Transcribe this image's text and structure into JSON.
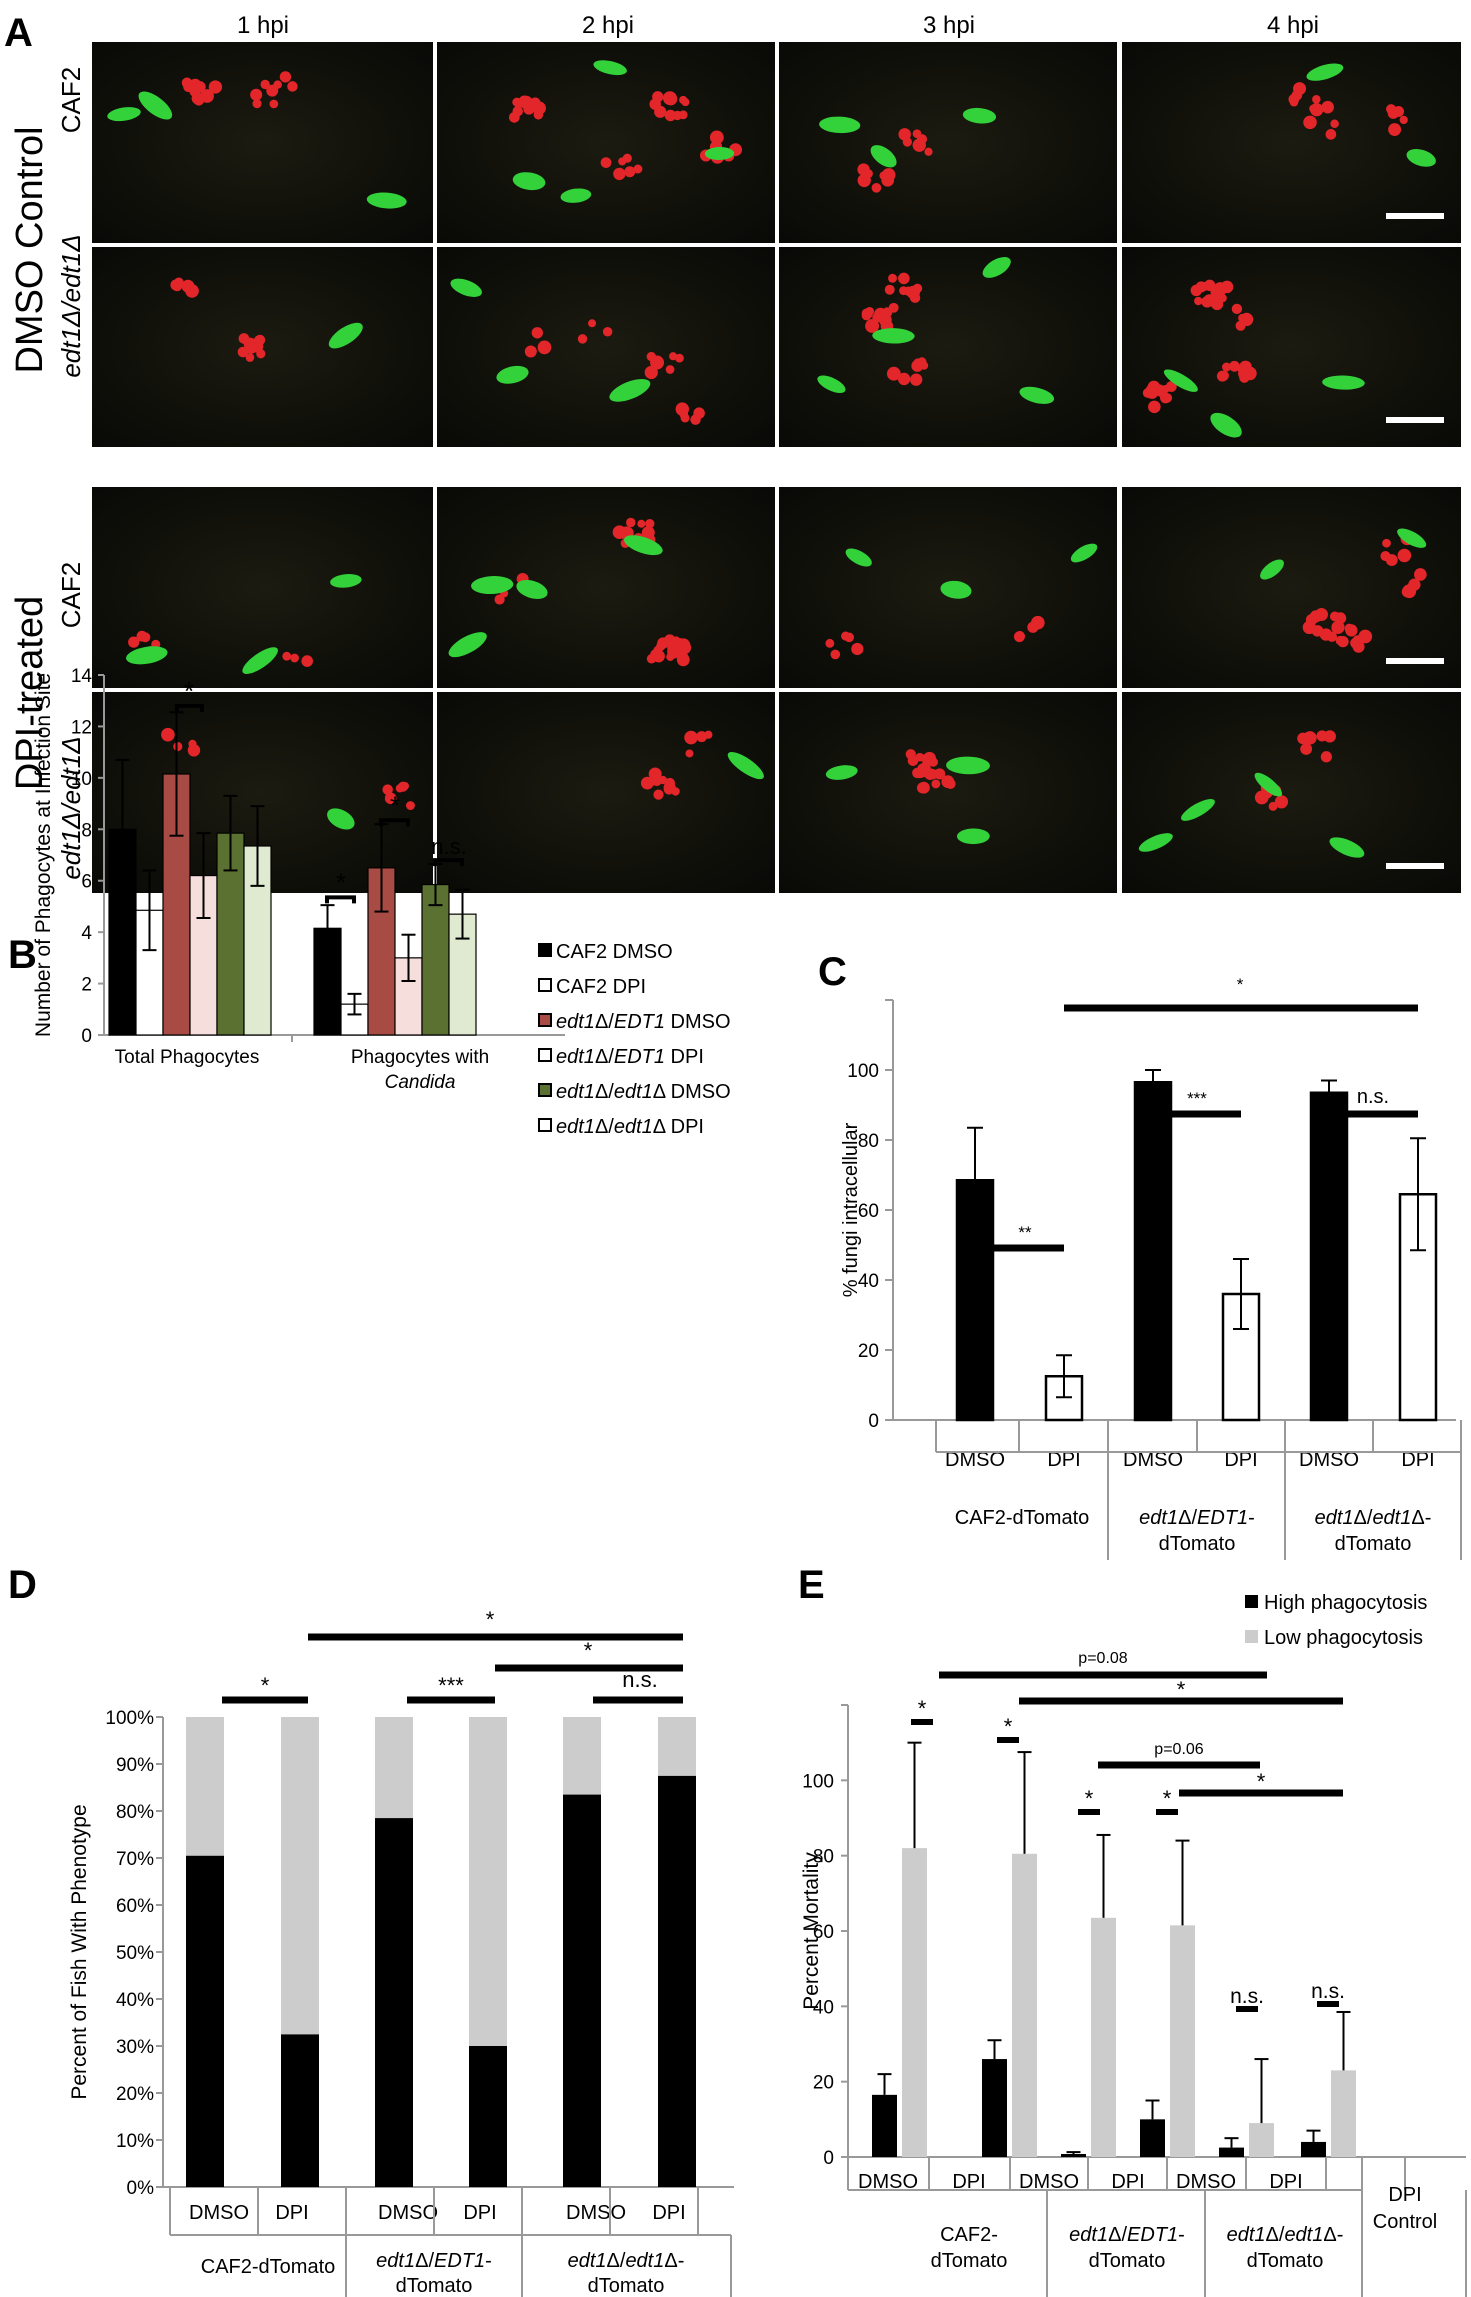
{
  "panel_labels": {
    "a": "A",
    "b": "B",
    "c": "C",
    "d": "D",
    "e": "E"
  },
  "panel_a": {
    "col_labels": [
      "1 hpi",
      "2 hpi",
      "3 hpi",
      "4 hpi"
    ],
    "group_labels": [
      "DMSO Control",
      "DPI-treated"
    ],
    "strain_caf2": "CAF2",
    "strain_edt1": "edt1Δ/edt1Δ"
  },
  "panel_b": {
    "legend": [
      "CAF2 DMSO",
      "CAF2 DPI",
      "edt1Δ/EDT1 DMSO",
      "edt1Δ/EDT1 DPI",
      "edt1Δ/edt1Δ DMSO",
      "edt1Δ/edt1Δ DPI"
    ],
    "annotations": [
      "*",
      "*",
      "*",
      "n.s."
    ],
    "group2_line2": "Candida"
  },
  "panel_c": {
    "annotations": [
      "**",
      "***",
      "n.s.",
      "*"
    ],
    "group_labels": [
      [
        "CAF2-dTomato"
      ],
      [
        "edt1Δ/EDT1-",
        "dTomato"
      ],
      [
        "edt1Δ/edt1Δ-",
        "dTomato"
      ]
    ]
  },
  "panel_d": {
    "annotations": [
      "*",
      "***",
      "n.s.",
      "*",
      "*"
    ],
    "group_labels": [
      [
        "CAF2-dTomato"
      ],
      [
        "edt1Δ/EDT1-",
        "dTomato"
      ],
      [
        "edt1Δ/edt1Δ-",
        "dTomato"
      ]
    ]
  },
  "panel_e": {
    "annotations": [
      "*",
      "*",
      "*",
      "*",
      "n.s.",
      "n.s.",
      "p=0.08",
      "*",
      "p=0.06",
      "*"
    ],
    "group_labels": [
      [
        "CAF2-",
        "dTomato"
      ],
      [
        "edt1Δ/EDT1-",
        "dTomato"
      ],
      [
        "edt1Δ/edt1Δ-",
        "dTomato"
      ],
      [
        "DPI",
        "Control"
      ]
    ]
  },
  "chart_data": [
    {
      "type": "bar",
      "panel": "B",
      "categories": [
        "Total Phagocytes",
        "Phagocytes with Candida"
      ],
      "ylabel": "Number of Phagocytes at Infection Site",
      "ylim": [
        0,
        14
      ],
      "yticks": [
        0,
        2,
        4,
        6,
        8,
        10,
        12,
        14
      ],
      "colors": {
        "CAF2 DMSO": "#000000",
        "CAF2 DPI": "#ffffff",
        "edt1Δ/EDT1 DMSO": "#a84b44",
        "edt1Δ/EDT1 DPI": "#f6dedc",
        "edt1Δ/edt1Δ DMSO": "#5a7132",
        "edt1Δ/edt1Δ DPI": "#e0ead0"
      },
      "series": [
        {
          "name": "CAF2 DMSO",
          "values": [
            8.0,
            4.15
          ],
          "err": [
            2.7,
            0.9
          ]
        },
        {
          "name": "CAF2 DPI",
          "values": [
            4.85,
            1.2
          ],
          "err": [
            1.55,
            0.4
          ]
        },
        {
          "name": "edt1Δ/EDT1 DMSO",
          "values": [
            10.15,
            6.5
          ],
          "err": [
            2.4,
            1.7
          ]
        },
        {
          "name": "edt1Δ/EDT1 DPI",
          "values": [
            6.2,
            3.0
          ],
          "err": [
            1.65,
            0.9
          ]
        },
        {
          "name": "edt1Δ/edt1Δ DMSO",
          "values": [
            7.85,
            5.85
          ],
          "err": [
            1.45,
            0.8
          ]
        },
        {
          "name": "edt1Δ/edt1Δ DPI",
          "values": [
            7.35,
            4.7
          ],
          "err": [
            1.55,
            0.95
          ]
        }
      ]
    },
    {
      "type": "bar",
      "panel": "C",
      "categories": [
        "DMSO",
        "DPI",
        "DMSO",
        "DPI",
        "DMSO",
        "DPI"
      ],
      "ylabel": "% fungi intracellular",
      "ylim": [
        0,
        120
      ],
      "yticks": [
        0,
        20,
        40,
        60,
        80,
        100
      ],
      "values": [
        68.5,
        12.5,
        96.5,
        36.0,
        93.5,
        64.5
      ],
      "err": [
        15,
        6,
        3.5,
        10,
        3.5,
        16
      ]
    },
    {
      "type": "bar",
      "panel": "D",
      "categories": [
        "DMSO",
        "DPI",
        "DMSO",
        "DPI",
        "DMSO",
        "DPI"
      ],
      "ylabel": "Percent of Fish With Phenotype",
      "ylim": [
        0,
        100
      ],
      "yticks": [
        "0%",
        "10%",
        "20%",
        "30%",
        "40%",
        "50%",
        "60%",
        "70%",
        "80%",
        "90%",
        "100%"
      ],
      "series": [
        {
          "name": "black",
          "values": [
            70.5,
            32.5,
            78.5,
            30.0,
            83.5,
            87.5
          ]
        },
        {
          "name": "gray",
          "values": [
            29.5,
            67.5,
            21.5,
            70.0,
            16.5,
            12.5
          ]
        }
      ]
    },
    {
      "type": "bar",
      "panel": "E",
      "categories": [
        "DMSO",
        "DPI",
        "DMSO",
        "DPI",
        "DMSO",
        "DPI",
        "DPI Control"
      ],
      "ylabel": "Percent Mortality",
      "ylim": [
        0,
        120
      ],
      "yticks": [
        0,
        20,
        40,
        60,
        80,
        100
      ],
      "legend": [
        "High phagocytosis",
        "Low phagocytosis"
      ],
      "series": [
        {
          "name": "High phagocytosis",
          "values": [
            16.5,
            26.0,
            0.8,
            10.0,
            2.5,
            4.0,
            0
          ],
          "err": [
            5.5,
            5,
            0.5,
            5,
            2.5,
            3,
            0
          ]
        },
        {
          "name": "Low phagocytosis",
          "values": [
            82.0,
            80.5,
            63.5,
            61.5,
            9.0,
            23.0,
            0
          ],
          "err": [
            28,
            27,
            22,
            22.5,
            17,
            15.5,
            0
          ]
        }
      ]
    }
  ]
}
